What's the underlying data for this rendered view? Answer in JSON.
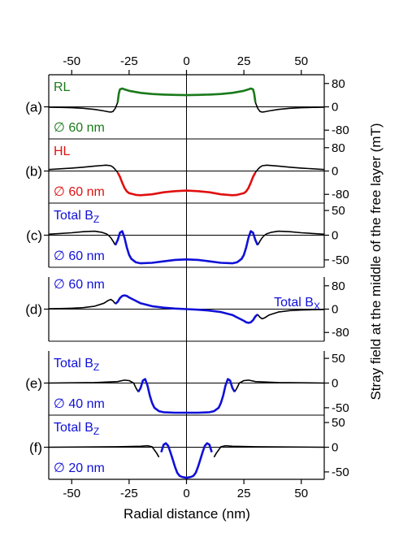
{
  "chart_data": {
    "type": "line",
    "xlabel": "Radial distance (nm)",
    "ylabel": "Stray field at the middle of the free layer (mT)",
    "xlim": [
      -60,
      60
    ],
    "xticks": [
      -50,
      -25,
      0,
      25,
      50
    ],
    "panels": [
      {
        "id": "a",
        "letter": "(a)",
        "ylim": [
          -110,
          110
        ],
        "yticks": [
          80,
          0,
          -80
        ],
        "series_name": "RL",
        "series_color": "#1a7a1a",
        "size_label": "∅ 60 nm",
        "x": [
          -60,
          -55,
          -50,
          -45,
          -40,
          -36,
          -34,
          -33,
          -32,
          -31,
          -30,
          -29.5,
          -29,
          -28,
          -27,
          -25,
          -20,
          -15,
          -10,
          -5,
          0,
          5,
          10,
          15,
          20,
          25,
          27,
          28,
          29,
          29.5,
          30,
          31,
          32,
          33,
          34,
          36,
          40,
          45,
          50,
          55,
          60
        ],
        "values": [
          -1,
          -2,
          -3,
          -5,
          -9,
          -14,
          -17,
          -18,
          -16,
          -5,
          15,
          45,
          60,
          63,
          60,
          55,
          48,
          44,
          42,
          41,
          40,
          41,
          42,
          44,
          48,
          55,
          60,
          63,
          60,
          45,
          15,
          -5,
          -16,
          -18,
          -17,
          -14,
          -9,
          -5,
          -3,
          -2,
          -1
        ],
        "highlight": [
          -30,
          30
        ]
      },
      {
        "id": "b",
        "letter": "(b)",
        "ylim": [
          -110,
          110
        ],
        "yticks": [
          80,
          0,
          -80
        ],
        "series_name": "HL",
        "series_color": "#e01010",
        "size_label": "∅ 60 nm",
        "x": [
          -60,
          -50,
          -45,
          -40,
          -35,
          -33,
          -32,
          -31,
          -30,
          -29,
          -28,
          -27,
          -26,
          -25,
          -22,
          -20,
          -15,
          -10,
          -5,
          0,
          5,
          10,
          15,
          20,
          22,
          25,
          26,
          27,
          28,
          29,
          30,
          31,
          32,
          33,
          35,
          40,
          45,
          50,
          60
        ],
        "values": [
          5,
          10,
          13,
          17,
          20,
          18,
          13,
          5,
          -5,
          -20,
          -40,
          -58,
          -70,
          -76,
          -82,
          -83,
          -80,
          -73,
          -69,
          -67,
          -69,
          -73,
          -80,
          -83,
          -82,
          -76,
          -70,
          -58,
          -40,
          -20,
          -5,
          5,
          13,
          18,
          20,
          17,
          13,
          10,
          5
        ],
        "highlight": [
          -30,
          30
        ]
      },
      {
        "id": "c",
        "letter": "(c)",
        "ylim": [
          -65,
          65
        ],
        "yticks": [
          50,
          0,
          -50
        ],
        "series_name": "Total B",
        "series_sub": "Z",
        "series_color": "#1010d8",
        "size_label": "∅ 60 nm",
        "x": [
          -60,
          -50,
          -45,
          -40,
          -37,
          -35,
          -34,
          -33,
          -32,
          -31,
          -30,
          -29,
          -28,
          -27,
          -26,
          -25,
          -24,
          -22,
          -20,
          -15,
          -10,
          -5,
          0,
          5,
          10,
          15,
          20,
          22,
          24,
          25,
          26,
          27,
          28,
          29,
          30,
          31,
          32,
          33,
          34,
          35,
          37,
          40,
          45,
          50,
          60
        ],
        "values": [
          2,
          5,
          7,
          8,
          6,
          3,
          0,
          -5,
          -12,
          -20,
          -10,
          5,
          8,
          -5,
          -25,
          -40,
          -48,
          -55,
          -57,
          -56,
          -53,
          -50,
          -49,
          -50,
          -53,
          -56,
          -57,
          -55,
          -48,
          -40,
          -25,
          -5,
          8,
          5,
          -10,
          -20,
          -12,
          -5,
          0,
          3,
          6,
          8,
          7,
          5,
          2
        ],
        "highlight": [
          -31,
          31
        ]
      },
      {
        "id": "d",
        "letter": "(d)",
        "ylim": [
          -110,
          110
        ],
        "yticks": [
          80,
          0,
          -80
        ],
        "series_name": "Total B",
        "series_sub": "X",
        "series_color": "#1010d8",
        "size_label": "∅ 60 nm",
        "x": [
          -60,
          -55,
          -50,
          -45,
          -40,
          -36,
          -34,
          -33,
          -32,
          -31,
          -30,
          -29,
          -28,
          -27,
          -26,
          -25,
          -22,
          -20,
          -15,
          -10,
          -5,
          0,
          5,
          10,
          15,
          20,
          22,
          25,
          26,
          27,
          28,
          29,
          30,
          31,
          32,
          33,
          34,
          36,
          40,
          45,
          50,
          55,
          60
        ],
        "values": [
          1,
          2,
          3,
          5,
          10,
          20,
          30,
          33,
          28,
          18,
          25,
          38,
          45,
          47,
          45,
          40,
          28,
          20,
          10,
          5,
          2,
          0,
          -2,
          -5,
          -10,
          -20,
          -28,
          -40,
          -45,
          -47,
          -45,
          -38,
          -25,
          -18,
          -28,
          -33,
          -30,
          -20,
          -10,
          -5,
          -3,
          -2,
          -1
        ],
        "highlight": [
          -31,
          31
        ]
      },
      {
        "id": "e",
        "letter": "(e)",
        "ylim": [
          -65,
          65
        ],
        "yticks": [
          50,
          0,
          -50
        ],
        "series_name": "Total B",
        "series_sub": "Z",
        "series_color": "#1010d8",
        "size_label": "∅ 40 nm",
        "x": [
          -60,
          -40,
          -30,
          -27,
          -25,
          -23,
          -22,
          -21,
          -20,
          -19,
          -18,
          -17,
          -16,
          -15,
          -14,
          -12,
          -10,
          -5,
          0,
          5,
          10,
          12,
          14,
          15,
          16,
          17,
          18,
          19,
          20,
          21,
          22,
          23,
          25,
          27,
          30,
          40,
          60
        ],
        "values": [
          0,
          1,
          3,
          6,
          5,
          0,
          -10,
          -18,
          -10,
          5,
          8,
          -5,
          -25,
          -40,
          -50,
          -57,
          -59,
          -60,
          -60,
          -60,
          -59,
          -57,
          -50,
          -40,
          -25,
          -5,
          8,
          5,
          -10,
          -18,
          -10,
          0,
          5,
          6,
          3,
          1,
          0
        ],
        "highlight": [
          -21,
          21
        ]
      },
      {
        "id": "f",
        "letter": "(f)",
        "ylim": [
          -65,
          65
        ],
        "yticks": [
          50,
          0,
          -50
        ],
        "series_name": "Total B",
        "series_sub": "Z",
        "series_color": "#1010d8",
        "size_label": "∅ 20 nm",
        "x": [
          -60,
          -30,
          -20,
          -17,
          -15,
          -13,
          -12,
          -11,
          -10,
          -9,
          -8,
          -7,
          -6,
          -5,
          -4,
          -3,
          -2,
          0,
          2,
          3,
          4,
          5,
          6,
          7,
          8,
          9,
          10,
          11,
          12,
          13,
          15,
          17,
          20,
          30,
          60
        ],
        "values": [
          0,
          1,
          2,
          3,
          1,
          -12,
          -20,
          -10,
          5,
          8,
          3,
          -10,
          -25,
          -40,
          -52,
          -58,
          -60,
          -62,
          -60,
          -58,
          -52,
          -40,
          -25,
          -10,
          3,
          8,
          5,
          -10,
          -20,
          -12,
          1,
          3,
          2,
          1,
          0
        ],
        "highlight": [
          -11.5,
          11.5
        ]
      }
    ]
  }
}
